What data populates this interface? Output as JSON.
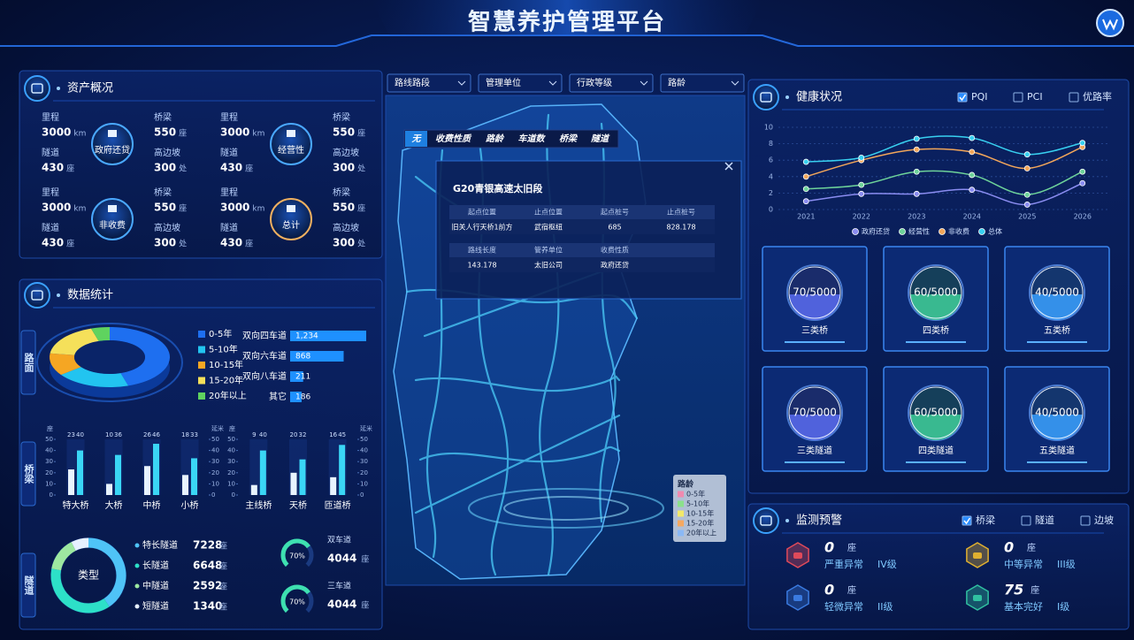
{
  "header": {
    "title": "智慧养护管理平台"
  },
  "asset": {
    "title": "资产概况",
    "cards": [
      {
        "label": "政府还贷",
        "items": [
          {
            "name": "里程",
            "value": 3000,
            "unit": "km"
          },
          {
            "name": "桥梁",
            "value": 550,
            "unit": "座"
          },
          {
            "name": "隧道",
            "value": 430,
            "unit": "座"
          },
          {
            "name": "高边坡",
            "value": 300,
            "unit": "处"
          }
        ]
      },
      {
        "label": "经营性",
        "items": [
          {
            "name": "里程",
            "value": 3000,
            "unit": "km"
          },
          {
            "name": "桥梁",
            "value": 550,
            "unit": "座"
          },
          {
            "name": "隧道",
            "value": 430,
            "unit": "座"
          },
          {
            "name": "高边坡",
            "value": 300,
            "unit": "处"
          }
        ]
      },
      {
        "label": "非收费",
        "items": [
          {
            "name": "里程",
            "value": 3000,
            "unit": "km"
          },
          {
            "name": "桥梁",
            "value": 550,
            "unit": "座"
          },
          {
            "name": "隧道",
            "value": 430,
            "unit": "座"
          },
          {
            "name": "高边坡",
            "value": 300,
            "unit": "处"
          }
        ]
      },
      {
        "label": "总计",
        "items": [
          {
            "name": "里程",
            "value": 3000,
            "unit": "km"
          },
          {
            "name": "桥梁",
            "value": 550,
            "unit": "座"
          },
          {
            "name": "隧道",
            "value": 430,
            "unit": "座"
          },
          {
            "name": "高边坡",
            "value": 300,
            "unit": "处"
          }
        ]
      }
    ]
  },
  "stats": {
    "title": "数据统计",
    "tabs": [
      "路面",
      "桥梁",
      "隧道"
    ]
  },
  "map": {
    "filters": [
      "路线路段",
      "管理单位",
      "行政等级",
      "路龄"
    ],
    "tabs": [
      "无",
      "收费性质",
      "路龄",
      "车道数",
      "桥梁",
      "隧道"
    ],
    "popup": {
      "title": "G20青银高速太旧段",
      "table1": {
        "headers": [
          "起点位置",
          "止点位置",
          "起点桩号",
          "止点桩号"
        ],
        "row": [
          "旧关人行天桥1前方",
          "武宿枢纽",
          "685",
          "828.178"
        ]
      },
      "table2": {
        "headers": [
          "路线长度",
          "管养单位",
          "收费性质"
        ],
        "row": [
          "143.178",
          "太旧公司",
          "政府还贷"
        ]
      }
    },
    "legend": {
      "title": "路龄",
      "items": [
        {
          "label": "0-5年",
          "color": "#f08ab0"
        },
        {
          "label": "5-10年",
          "color": "#8be08b"
        },
        {
          "label": "10-15年",
          "color": "#f2e86a"
        },
        {
          "label": "15-20年",
          "color": "#f5a860"
        },
        {
          "label": "20年以上",
          "color": "#8ab8f5"
        }
      ]
    }
  },
  "health": {
    "title": "健康状况",
    "options": [
      {
        "label": "PQI",
        "checked": true
      },
      {
        "label": "PCI",
        "checked": false
      },
      {
        "label": "优路率",
        "checked": false
      }
    ],
    "cards": [
      {
        "value": "70/5000",
        "label": "三类桥",
        "color": "#5a6cf0"
      },
      {
        "value": "60/5000",
        "label": "四类桥",
        "color": "#3fcf9a"
      },
      {
        "value": "40/5000",
        "label": "五类桥",
        "color": "#3aa0ff"
      },
      {
        "value": "70/5000",
        "label": "三类隧道",
        "color": "#5a6cf0"
      },
      {
        "value": "60/5000",
        "label": "四类隧道",
        "color": "#3fcf9a"
      },
      {
        "value": "40/5000",
        "label": "五类隧道",
        "color": "#3aa0ff"
      }
    ]
  },
  "monitor": {
    "title": "监测预警",
    "options": [
      {
        "label": "桥梁",
        "checked": true
      },
      {
        "label": "隧道",
        "checked": false
      },
      {
        "label": "边坡",
        "checked": false
      }
    ],
    "items": [
      {
        "count": 0,
        "unit": "座",
        "label": "严重异常",
        "level": "IV级",
        "color": "#e04a5a"
      },
      {
        "count": 0,
        "unit": "座",
        "label": "中等异常",
        "level": "III级",
        "color": "#e0b030"
      },
      {
        "count": 0,
        "unit": "座",
        "label": "轻微异常",
        "level": "II级",
        "color": "#3a7ae0"
      },
      {
        "count": 75,
        "unit": "座",
        "label": "基本完好",
        "level": "I级",
        "color": "#30c0a0"
      }
    ]
  },
  "chart_data": [
    {
      "type": "pie3d",
      "categories": [
        "0-5年",
        "5-10年",
        "10-15年",
        "15-20年",
        "20年以上"
      ],
      "values": [
        45,
        20,
        12,
        18,
        5
      ],
      "colors": [
        "#1e6ff0",
        "#22c4f0",
        "#f5a623",
        "#f5e05a",
        "#5fd35f"
      ]
    },
    {
      "type": "hbar",
      "categories": [
        "双向四车道",
        "双向六车道",
        "双向八车道",
        "其它"
      ],
      "values": [
        1234,
        868,
        211,
        186
      ],
      "value_labels": [
        "1,234",
        "868",
        "211",
        "186"
      ],
      "color": "#1e90ff"
    },
    {
      "type": "bar",
      "categories": [
        "特大桥",
        "大桥",
        "中桥",
        "小桥"
      ],
      "series": [
        {
          "color": "#e8f4ff",
          "values": [
            23,
            10,
            26,
            18
          ]
        },
        {
          "color": "#3ad6f5",
          "axis": "y2",
          "values": [
            40,
            36,
            46,
            33
          ]
        }
      ],
      "ylabel": "座",
      "y2label": "延米",
      "ylim": [
        0,
        50
      ],
      "yticks": [
        0,
        10,
        20,
        30,
        40,
        50
      ],
      "y2lim": [
        0,
        50
      ],
      "y2ticks": [
        0,
        10,
        20,
        30,
        40,
        50
      ]
    },
    {
      "type": "bar",
      "categories": [
        "主线桥",
        "天桥",
        "匝道桥"
      ],
      "series": [
        {
          "color": "#e8f4ff",
          "values": [
            9,
            20,
            16
          ]
        },
        {
          "color": "#3ad6f5",
          "axis": "y2",
          "values": [
            40,
            32,
            45
          ]
        }
      ],
      "ylabel": "座",
      "y2label": "延米",
      "ylim": [
        0,
        50
      ],
      "yticks": [
        0,
        10,
        20,
        30,
        40,
        50
      ],
      "y2lim": [
        0,
        50
      ],
      "y2ticks": [
        0,
        10,
        20,
        30,
        40,
        50
      ]
    },
    {
      "type": "donut",
      "title": "类型",
      "categories": [
        "特长隧道",
        "长隧道",
        "中隧道",
        "短隧道"
      ],
      "values": [
        7228,
        6648,
        2592,
        1340
      ],
      "unit": "座",
      "colors": [
        "#4fc3f7",
        "#2de0c8",
        "#9de8a0",
        "#e6f0ff"
      ]
    },
    {
      "type": "gauge",
      "title": "双车道",
      "values": [
        70
      ],
      "value_labels": [
        "70%"
      ],
      "ylim": [
        0,
        100
      ],
      "count": 4044,
      "unit": "座",
      "color": "#3ee0b0"
    },
    {
      "type": "gauge",
      "title": "三车道",
      "values": [
        70
      ],
      "value_labels": [
        "70%"
      ],
      "ylim": [
        0,
        100
      ],
      "count": 4044,
      "unit": "座",
      "color": "#3ee0b0"
    },
    {
      "type": "line",
      "categories": [
        "2021",
        "2022",
        "2023",
        "2024",
        "2025",
        "2026"
      ],
      "series": [
        {
          "name": "政府还贷",
          "color": "#8a8cf0",
          "values": [
            1.0,
            1.9,
            1.9,
            2.4,
            0.6,
            3.2
          ]
        },
        {
          "name": "经营性",
          "color": "#6ed39a",
          "values": [
            2.5,
            3.0,
            4.6,
            4.2,
            1.8,
            4.6
          ]
        },
        {
          "name": "非收费",
          "color": "#f2a65a",
          "values": [
            4.0,
            6.0,
            7.3,
            7.0,
            5.0,
            7.6
          ]
        },
        {
          "name": "总体",
          "color": "#38d0f0",
          "values": [
            5.8,
            6.3,
            8.6,
            8.7,
            6.7,
            8.1
          ]
        }
      ],
      "ylim": [
        0,
        10
      ],
      "yticks": [
        0,
        2,
        4,
        6,
        8,
        10
      ],
      "grid": true
    }
  ]
}
